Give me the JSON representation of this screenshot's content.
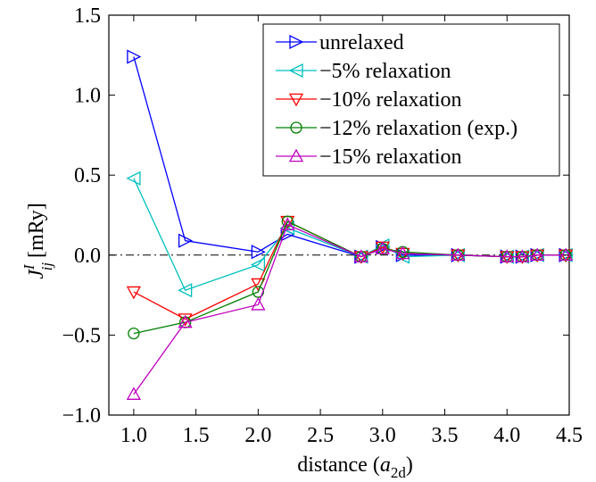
{
  "chart_data": {
    "type": "line",
    "title": "",
    "xlabel": "distance (a_2d)",
    "xlabel_main": "distance (",
    "xlabel_var": "a",
    "xlabel_sub": "2d",
    "xlabel_close": ")",
    "ylabel": "J_ij^I [mRy]",
    "ylabel_var": "J",
    "ylabel_sub": "ij",
    "ylabel_sup": "I",
    "ylabel_unit": "[mRy]",
    "xlim": [
      0.8,
      4.5
    ],
    "ylim": [
      -1.0,
      1.5
    ],
    "xticks": [
      "1.0",
      "1.5",
      "2.0",
      "2.5",
      "3.0",
      "3.5",
      "4.0",
      "4.5"
    ],
    "yticks": [
      "1.5",
      "1.0",
      "0.5",
      "0.0",
      "−0.5",
      "−1.0"
    ],
    "grid": false,
    "reference_line_y": 0.0,
    "legend_position": "top-right",
    "x": [
      1.0,
      1.414,
      2.0,
      2.236,
      2.828,
      3.0,
      3.162,
      3.606,
      4.0,
      4.123,
      4.243,
      4.472
    ],
    "series": [
      {
        "name": "unrelaxed",
        "color": "#0000ff",
        "marker": "triangle-right",
        "values": [
          1.24,
          0.09,
          0.02,
          0.13,
          -0.01,
          0.05,
          0.0,
          0.0,
          -0.01,
          -0.01,
          0.0,
          0.0
        ]
      },
      {
        "name": "−5% relaxation",
        "color": "#00bfbf",
        "marker": "triangle-left",
        "values": [
          0.48,
          -0.22,
          -0.06,
          0.17,
          -0.01,
          0.06,
          -0.01,
          0.0,
          -0.01,
          -0.01,
          0.0,
          0.0
        ]
      },
      {
        "name": "−10% relaxation",
        "color": "#ff0000",
        "marker": "triangle-down",
        "values": [
          -0.23,
          -0.4,
          -0.18,
          0.21,
          -0.01,
          0.05,
          0.01,
          0.0,
          -0.01,
          -0.01,
          0.0,
          0.0
        ]
      },
      {
        "name": "−12% relaxation (exp.)",
        "color": "#008000",
        "marker": "circle",
        "values": [
          -0.49,
          -0.42,
          -0.23,
          0.21,
          -0.01,
          0.04,
          0.02,
          0.0,
          -0.01,
          -0.01,
          0.0,
          0.0
        ]
      },
      {
        "name": "−15% relaxation",
        "color": "#bf00bf",
        "marker": "triangle-up",
        "values": [
          -0.87,
          -0.42,
          -0.31,
          0.19,
          -0.01,
          0.04,
          0.01,
          0.0,
          -0.01,
          -0.01,
          0.0,
          0.0
        ]
      }
    ]
  }
}
